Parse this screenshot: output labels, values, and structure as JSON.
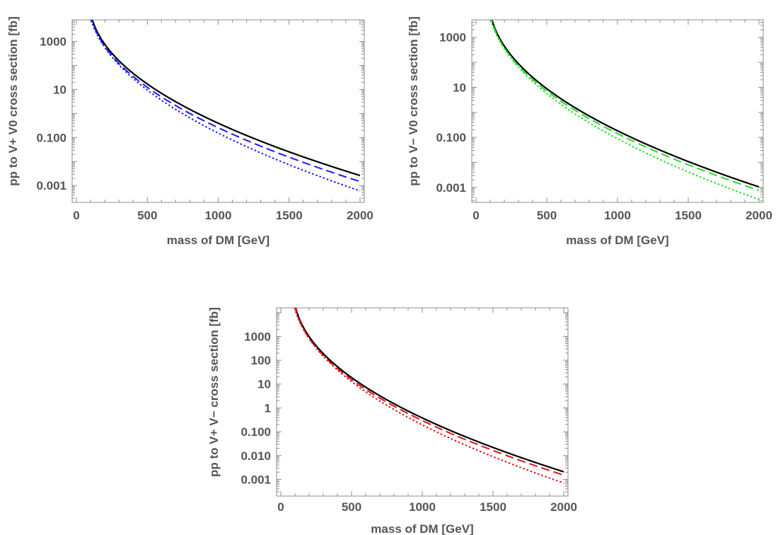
{
  "chart_data": [
    {
      "type": "line",
      "xlabel": "mass of DM [GeV]",
      "ylabel": "pp to V+ V0 cross section [fb]",
      "xlim": [
        -30,
        2030
      ],
      "ylim_log10": [
        -3.7,
        3.9
      ],
      "x_ticks": [
        "0",
        "500",
        "1000",
        "1500",
        "2000"
      ],
      "x_tick_values": [
        0,
        500,
        1000,
        1500,
        2000
      ],
      "y_ticks": [
        "1000",
        "10",
        "0.100",
        "0.001"
      ],
      "y_tick_values": [
        1000,
        10,
        0.1,
        0.001
      ],
      "grid": false,
      "series": [
        {
          "style": "solid",
          "color": "#000000",
          "x": [
            100,
            2000
          ],
          "logA": 3.95,
          "logB": -2.58,
          "x0": 90,
          "p": 0.47
        },
        {
          "style": "dashed",
          "color": "#1a1aff",
          "x": [
            100,
            2000
          ],
          "logA": 3.89,
          "logB": -2.83,
          "x0": 90,
          "p": 0.47
        },
        {
          "style": "dotted",
          "color": "#1a1aff",
          "x": [
            90,
            2000
          ],
          "logA": 3.78,
          "logB": -3.22,
          "x0": 75,
          "p": 0.47
        }
      ]
    },
    {
      "type": "line",
      "xlabel": "mass of DM [GeV]",
      "ylabel": "pp to V− V0 cross section [fb]",
      "xlim": [
        -30,
        2030
      ],
      "ylim_log10": [
        -3.6,
        3.7
      ],
      "x_ticks": [
        "0",
        "500",
        "1000",
        "1500",
        "2000"
      ],
      "x_tick_values": [
        0,
        500,
        1000,
        1500,
        2000
      ],
      "y_ticks": [
        "1000",
        "10",
        "0.100",
        "0.001"
      ],
      "y_tick_values": [
        1000,
        10,
        0.1,
        0.001
      ],
      "grid": false,
      "series": [
        {
          "style": "solid",
          "color": "#000000",
          "x": [
            100,
            2000
          ],
          "logA": 3.75,
          "logB": -2.98,
          "x0": 90,
          "p": 0.47
        },
        {
          "style": "dashed",
          "color": "#22dd22",
          "x": [
            100,
            2000
          ],
          "logA": 3.69,
          "logB": -3.12,
          "x0": 90,
          "p": 0.47
        },
        {
          "style": "dotted",
          "color": "#22dd22",
          "x": [
            90,
            2000
          ],
          "logA": 3.58,
          "logB": -3.48,
          "x0": 75,
          "p": 0.47
        }
      ]
    },
    {
      "type": "line",
      "xlabel": "mass of DM [GeV]",
      "ylabel": "pp to V+ V− cross section [fb]",
      "xlim": [
        -30,
        2030
      ],
      "ylim_log10": [
        -3.7,
        4.2
      ],
      "x_ticks": [
        "0",
        "500",
        "1000",
        "1500",
        "2000"
      ],
      "x_tick_values": [
        0,
        500,
        1000,
        1500,
        2000
      ],
      "y_ticks": [
        "1000",
        "100",
        "10",
        "1",
        "0.100",
        "0.010",
        "0.001"
      ],
      "y_tick_values": [
        1000,
        100,
        10,
        1,
        0.1,
        0.01,
        0.001
      ],
      "grid": false,
      "series": [
        {
          "style": "solid",
          "color": "#000000",
          "x": [
            100,
            2000
          ],
          "logA": 4.1,
          "logB": -2.68,
          "x0": 90,
          "p": 0.47
        },
        {
          "style": "dashed",
          "color": "#dd1111",
          "x": [
            100,
            2000
          ],
          "logA": 4.05,
          "logB": -2.82,
          "x0": 90,
          "p": 0.47
        },
        {
          "style": "dotted",
          "color": "#dd1111",
          "x": [
            90,
            2000
          ],
          "logA": 3.95,
          "logB": -3.15,
          "x0": 75,
          "p": 0.47
        }
      ]
    }
  ]
}
